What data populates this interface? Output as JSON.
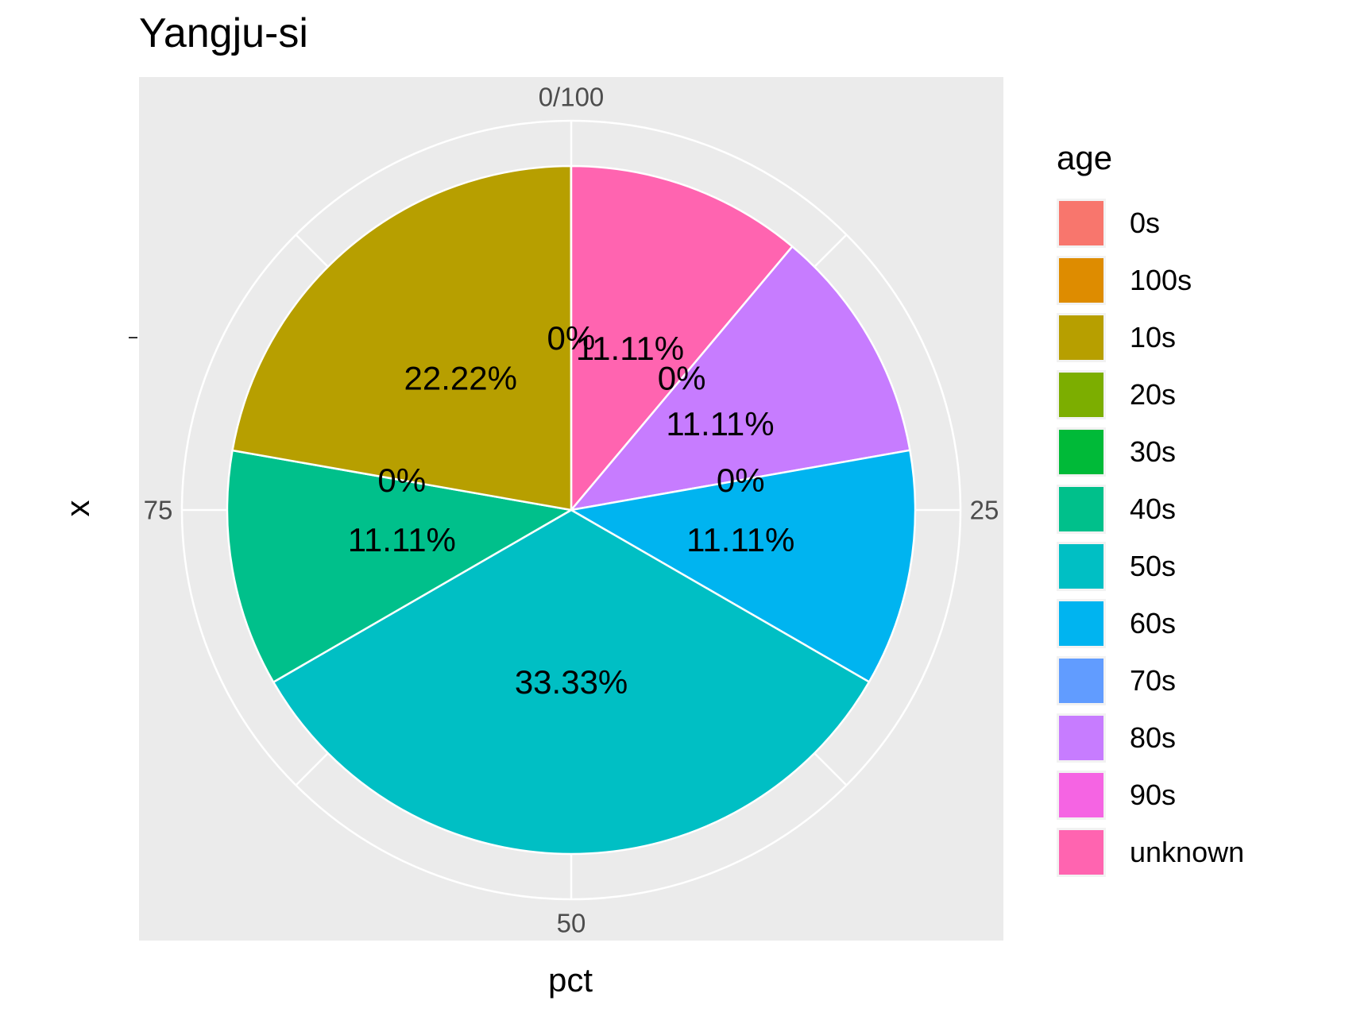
{
  "chart_data": {
    "type": "pie",
    "title": "Yangju-si",
    "xlabel": "pct",
    "ylabel": "x",
    "theta_ticks": [
      "0/100",
      "25",
      "50",
      "75"
    ],
    "legend": {
      "title": "age",
      "position": "right",
      "items": [
        {
          "label": "0s",
          "color": "#F8766D"
        },
        {
          "label": "100s",
          "color": "#DE8C00"
        },
        {
          "label": "10s",
          "color": "#B79F00"
        },
        {
          "label": "20s",
          "color": "#7CAE00"
        },
        {
          "label": "30s",
          "color": "#00BA38"
        },
        {
          "label": "40s",
          "color": "#00C08B"
        },
        {
          "label": "50s",
          "color": "#00BFC4"
        },
        {
          "label": "60s",
          "color": "#00B4F0"
        },
        {
          "label": "70s",
          "color": "#619CFF"
        },
        {
          "label": "80s",
          "color": "#C77CFF"
        },
        {
          "label": "90s",
          "color": "#F564E3"
        },
        {
          "label": "unknown",
          "color": "#FF64B0"
        }
      ]
    },
    "slices": [
      {
        "category": "unknown",
        "value": 11.11,
        "label": "11.11%",
        "color": "#FF64B0"
      },
      {
        "category": "90s",
        "value": 0,
        "label": "0%",
        "color": "#F564E3"
      },
      {
        "category": "80s",
        "value": 11.11,
        "label": "11.11%",
        "color": "#C77CFF"
      },
      {
        "category": "70s",
        "value": 0,
        "label": "0%",
        "color": "#619CFF"
      },
      {
        "category": "60s",
        "value": 11.11,
        "label": "11.11%",
        "color": "#00B4F0"
      },
      {
        "category": "50s",
        "value": 33.33,
        "label": "33.33%",
        "color": "#00BFC4"
      },
      {
        "category": "40s",
        "value": 11.11,
        "label": "11.11%",
        "color": "#00C08B"
      },
      {
        "category": "30s",
        "value": 0,
        "label": "0%",
        "color": "#00BA38"
      },
      {
        "category": "10s",
        "value": 22.22,
        "label": "22.22%",
        "color": "#B79F00"
      },
      {
        "category": "20s",
        "value": 0,
        "label": "0%",
        "color": "#7CAE00"
      }
    ],
    "panel_background": "#EBEBEB",
    "grid": true
  }
}
